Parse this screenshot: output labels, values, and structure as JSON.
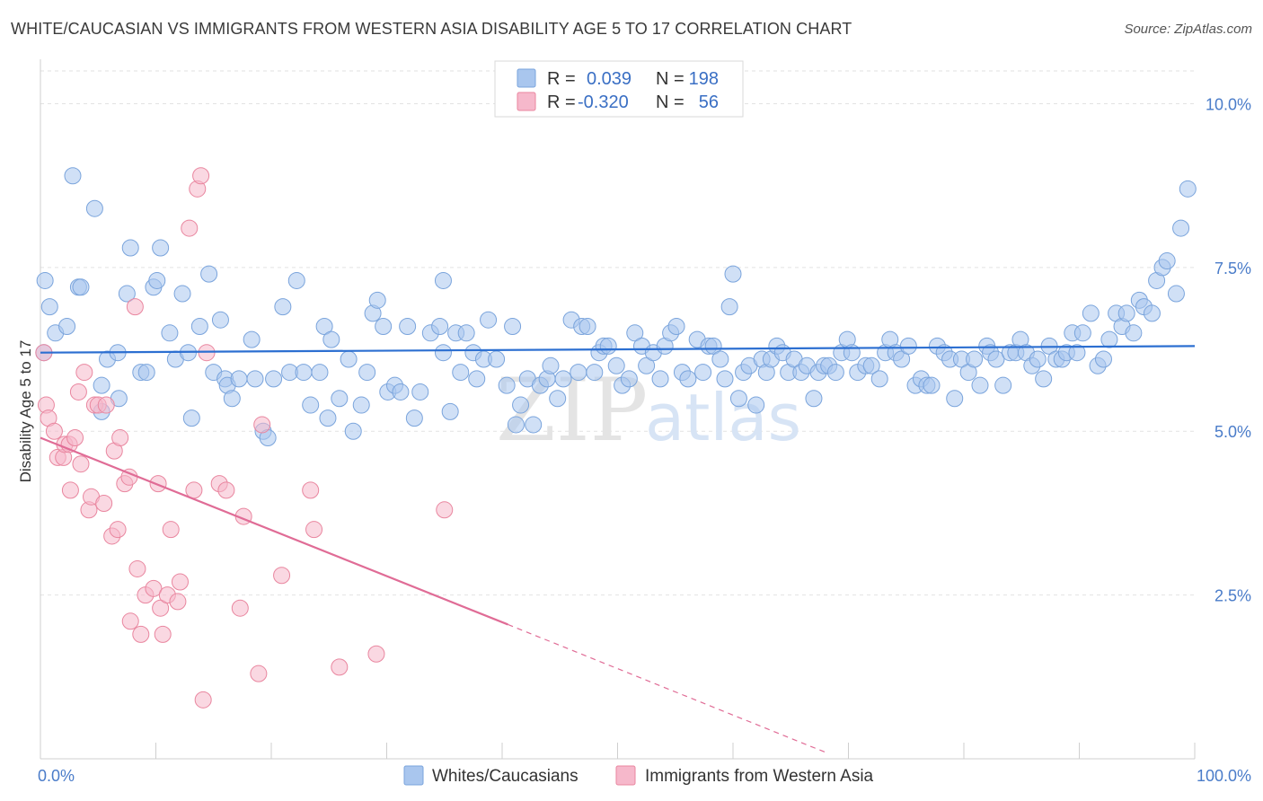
{
  "header": {
    "title": "WHITE/CAUCASIAN VS IMMIGRANTS FROM WESTERN ASIA DISABILITY AGE 5 TO 17 CORRELATION CHART",
    "source": "Source: ZipAtlas.com"
  },
  "watermark": {
    "zip": "ZIP",
    "atlas": "atlas"
  },
  "legend": {
    "r_label": "R =",
    "n_label": "N =",
    "rows": [
      {
        "r": "0.039",
        "n": "198",
        "color": "#a9c6ee"
      },
      {
        "r": "-0.320",
        "n": "56",
        "color": "#f6b8cb"
      }
    ]
  },
  "bottom_legend": [
    {
      "label": "Whites/Caucasians",
      "color": "#a9c6ee"
    },
    {
      "label": "Immigrants from Western Asia",
      "color": "#f6b8cb"
    }
  ],
  "chart_data": {
    "type": "scatter",
    "title": "WHITE/CAUCASIAN VS IMMIGRANTS FROM WESTERN ASIA DISABILITY AGE 5 TO 17 CORRELATION CHART",
    "xlabel": "",
    "ylabel": "Disability Age 5 to 17",
    "xlim": [
      0,
      100
    ],
    "ylim": [
      0,
      10.5
    ],
    "x_tick_labels": [
      "0.0%",
      "100.0%"
    ],
    "y_ticks": [
      {
        "value": 2.5,
        "label": "2.5%"
      },
      {
        "value": 5.0,
        "label": "5.0%"
      },
      {
        "value": 7.5,
        "label": "7.5%"
      },
      {
        "value": 10.0,
        "label": "10.0%"
      }
    ],
    "grid": true,
    "series": [
      {
        "name": "Whites/Caucasians",
        "color": "#a9c6ee",
        "stroke": "#7aa4dc",
        "trend": {
          "x": [
            0,
            100
          ],
          "y": [
            6.2,
            6.3
          ],
          "color": "#2c6fd1"
        },
        "points": [
          [
            0.3,
            6.2
          ],
          [
            0.4,
            7.3
          ],
          [
            0.8,
            6.9
          ],
          [
            1.3,
            6.5
          ],
          [
            2.3,
            6.6
          ],
          [
            2.8,
            8.9
          ],
          [
            3.3,
            7.2
          ],
          [
            3.5,
            7.2
          ],
          [
            4.7,
            8.4
          ],
          [
            5.3,
            5.7
          ],
          [
            5.3,
            5.3
          ],
          [
            5.8,
            6.1
          ],
          [
            6.7,
            6.2
          ],
          [
            6.8,
            5.5
          ],
          [
            7.5,
            7.1
          ],
          [
            7.8,
            7.8
          ],
          [
            8.7,
            5.9
          ],
          [
            9.2,
            5.9
          ],
          [
            9.8,
            7.2
          ],
          [
            10.1,
            7.3
          ],
          [
            10.4,
            7.8
          ],
          [
            11.2,
            6.5
          ],
          [
            11.7,
            6.1
          ],
          [
            12.3,
            7.1
          ],
          [
            12.8,
            6.2
          ],
          [
            13.1,
            5.2
          ],
          [
            13.8,
            6.6
          ],
          [
            14.6,
            7.4
          ],
          [
            15.0,
            5.9
          ],
          [
            15.6,
            6.7
          ],
          [
            16.0,
            5.8
          ],
          [
            16.2,
            5.7
          ],
          [
            16.6,
            5.5
          ],
          [
            17.2,
            5.8
          ],
          [
            18.3,
            6.4
          ],
          [
            18.6,
            5.8
          ],
          [
            19.3,
            5.0
          ],
          [
            19.7,
            4.9
          ],
          [
            20.2,
            5.8
          ],
          [
            21.0,
            6.9
          ],
          [
            21.6,
            5.9
          ],
          [
            22.2,
            7.3
          ],
          [
            22.8,
            5.9
          ],
          [
            23.4,
            5.4
          ],
          [
            24.2,
            5.9
          ],
          [
            24.6,
            6.6
          ],
          [
            24.9,
            5.2
          ],
          [
            25.2,
            6.4
          ],
          [
            25.9,
            5.5
          ],
          [
            26.7,
            6.1
          ],
          [
            27.1,
            5.0
          ],
          [
            27.8,
            5.4
          ],
          [
            28.3,
            5.9
          ],
          [
            28.8,
            6.8
          ],
          [
            29.2,
            7.0
          ],
          [
            29.7,
            6.6
          ],
          [
            30.1,
            5.6
          ],
          [
            30.7,
            5.7
          ],
          [
            31.2,
            5.6
          ],
          [
            31.8,
            6.6
          ],
          [
            32.4,
            5.2
          ],
          [
            32.9,
            5.6
          ],
          [
            33.8,
            6.5
          ],
          [
            34.6,
            6.6
          ],
          [
            34.9,
            6.2
          ],
          [
            34.9,
            7.3
          ],
          [
            35.5,
            5.3
          ],
          [
            36.0,
            6.5
          ],
          [
            36.4,
            5.9
          ],
          [
            36.9,
            6.5
          ],
          [
            37.5,
            6.2
          ],
          [
            37.8,
            5.8
          ],
          [
            38.4,
            6.1
          ],
          [
            38.8,
            6.7
          ],
          [
            39.5,
            6.1
          ],
          [
            40.4,
            5.7
          ],
          [
            40.9,
            6.6
          ],
          [
            41.2,
            5.1
          ],
          [
            41.6,
            5.4
          ],
          [
            42.2,
            5.8
          ],
          [
            42.7,
            5.1
          ],
          [
            43.3,
            5.7
          ],
          [
            43.9,
            5.8
          ],
          [
            44.2,
            6.0
          ],
          [
            44.8,
            5.5
          ],
          [
            45.3,
            5.8
          ],
          [
            46.0,
            6.7
          ],
          [
            46.6,
            5.9
          ],
          [
            46.9,
            6.6
          ],
          [
            47.4,
            6.6
          ],
          [
            48.0,
            5.9
          ],
          [
            48.4,
            6.2
          ],
          [
            48.8,
            6.3
          ],
          [
            49.2,
            6.3
          ],
          [
            49.9,
            6.0
          ],
          [
            50.4,
            5.7
          ],
          [
            51.0,
            5.8
          ],
          [
            51.5,
            6.5
          ],
          [
            52.1,
            6.3
          ],
          [
            52.5,
            6.0
          ],
          [
            53.1,
            6.2
          ],
          [
            53.7,
            5.8
          ],
          [
            54.1,
            6.3
          ],
          [
            54.6,
            6.5
          ],
          [
            55.1,
            6.6
          ],
          [
            55.6,
            5.9
          ],
          [
            56.1,
            5.8
          ],
          [
            56.9,
            6.4
          ],
          [
            57.4,
            5.9
          ],
          [
            57.9,
            6.3
          ],
          [
            58.3,
            6.3
          ],
          [
            58.9,
            6.1
          ],
          [
            59.3,
            5.8
          ],
          [
            59.7,
            6.9
          ],
          [
            60.0,
            7.4
          ],
          [
            60.5,
            5.5
          ],
          [
            60.9,
            5.9
          ],
          [
            61.4,
            6.0
          ],
          [
            62.0,
            5.4
          ],
          [
            62.5,
            6.1
          ],
          [
            62.9,
            5.9
          ],
          [
            63.3,
            6.1
          ],
          [
            63.8,
            6.3
          ],
          [
            64.3,
            6.2
          ],
          [
            64.8,
            5.9
          ],
          [
            65.3,
            6.1
          ],
          [
            65.9,
            5.9
          ],
          [
            66.4,
            6.0
          ],
          [
            67.0,
            5.5
          ],
          [
            67.4,
            5.9
          ],
          [
            67.9,
            6.0
          ],
          [
            68.3,
            6.0
          ],
          [
            68.9,
            5.9
          ],
          [
            69.4,
            6.2
          ],
          [
            69.9,
            6.4
          ],
          [
            70.3,
            6.2
          ],
          [
            70.8,
            5.9
          ],
          [
            71.5,
            6.0
          ],
          [
            72.0,
            6.0
          ],
          [
            72.7,
            5.8
          ],
          [
            73.2,
            6.2
          ],
          [
            73.6,
            6.4
          ],
          [
            74.1,
            6.2
          ],
          [
            74.6,
            6.1
          ],
          [
            75.2,
            6.3
          ],
          [
            75.8,
            5.7
          ],
          [
            76.3,
            5.8
          ],
          [
            76.8,
            5.7
          ],
          [
            77.2,
            5.7
          ],
          [
            77.7,
            6.3
          ],
          [
            78.3,
            6.2
          ],
          [
            78.8,
            6.1
          ],
          [
            79.2,
            5.5
          ],
          [
            79.8,
            6.1
          ],
          [
            80.4,
            5.9
          ],
          [
            80.9,
            6.1
          ],
          [
            81.4,
            5.7
          ],
          [
            82.0,
            6.3
          ],
          [
            82.3,
            6.2
          ],
          [
            82.8,
            6.1
          ],
          [
            83.4,
            5.7
          ],
          [
            84.0,
            6.2
          ],
          [
            84.5,
            6.2
          ],
          [
            84.9,
            6.4
          ],
          [
            85.4,
            6.2
          ],
          [
            85.9,
            6.0
          ],
          [
            86.4,
            6.1
          ],
          [
            86.9,
            5.8
          ],
          [
            87.4,
            6.3
          ],
          [
            88.0,
            6.1
          ],
          [
            88.5,
            6.1
          ],
          [
            88.9,
            6.2
          ],
          [
            89.4,
            6.5
          ],
          [
            89.8,
            6.2
          ],
          [
            90.3,
            6.5
          ],
          [
            91.0,
            6.8
          ],
          [
            91.6,
            6.0
          ],
          [
            92.1,
            6.1
          ],
          [
            92.6,
            6.4
          ],
          [
            93.2,
            6.8
          ],
          [
            93.7,
            6.6
          ],
          [
            94.1,
            6.8
          ],
          [
            94.7,
            6.5
          ],
          [
            95.2,
            7.0
          ],
          [
            95.6,
            6.9
          ],
          [
            96.3,
            6.8
          ],
          [
            96.7,
            7.3
          ],
          [
            97.2,
            7.5
          ],
          [
            97.6,
            7.6
          ],
          [
            98.4,
            7.1
          ],
          [
            98.8,
            8.1
          ],
          [
            99.4,
            8.7
          ]
        ]
      },
      {
        "name": "Immigrants from Western Asia",
        "color": "#f6b8cb",
        "stroke": "#e9869f",
        "trend": {
          "x": [
            0,
            40.5
          ],
          "y": [
            4.9,
            2.05
          ],
          "color": "#e06c96"
        },
        "trend_extension": {
          "x": [
            40.5,
            68
          ],
          "y": [
            2.05,
            0.1
          ]
        },
        "points": [
          [
            0.3,
            6.2
          ],
          [
            0.5,
            5.4
          ],
          [
            0.7,
            5.2
          ],
          [
            1.2,
            5.0
          ],
          [
            1.5,
            4.6
          ],
          [
            2.0,
            4.6
          ],
          [
            2.1,
            4.8
          ],
          [
            2.5,
            4.8
          ],
          [
            2.6,
            4.1
          ],
          [
            3.0,
            4.9
          ],
          [
            3.3,
            5.6
          ],
          [
            3.5,
            4.5
          ],
          [
            3.8,
            5.9
          ],
          [
            4.2,
            3.8
          ],
          [
            4.4,
            4.0
          ],
          [
            4.7,
            5.4
          ],
          [
            5.0,
            5.4
          ],
          [
            5.5,
            3.9
          ],
          [
            5.7,
            5.4
          ],
          [
            6.2,
            3.4
          ],
          [
            6.4,
            4.7
          ],
          [
            6.7,
            3.5
          ],
          [
            6.9,
            4.9
          ],
          [
            7.3,
            4.2
          ],
          [
            7.7,
            4.3
          ],
          [
            7.8,
            2.1
          ],
          [
            8.2,
            6.9
          ],
          [
            8.4,
            2.9
          ],
          [
            8.7,
            1.9
          ],
          [
            9.1,
            2.5
          ],
          [
            9.8,
            2.6
          ],
          [
            10.2,
            4.2
          ],
          [
            10.4,
            2.3
          ],
          [
            10.6,
            1.9
          ],
          [
            11.0,
            2.5
          ],
          [
            11.3,
            3.5
          ],
          [
            11.9,
            2.4
          ],
          [
            12.1,
            2.7
          ],
          [
            12.9,
            8.1
          ],
          [
            13.3,
            4.1
          ],
          [
            13.6,
            8.7
          ],
          [
            13.9,
            8.9
          ],
          [
            14.1,
            0.9
          ],
          [
            14.4,
            6.2
          ],
          [
            15.5,
            4.2
          ],
          [
            16.1,
            4.1
          ],
          [
            17.3,
            2.3
          ],
          [
            17.6,
            3.7
          ],
          [
            18.9,
            1.3
          ],
          [
            19.2,
            5.1
          ],
          [
            20.9,
            2.8
          ],
          [
            23.4,
            4.1
          ],
          [
            23.7,
            3.5
          ],
          [
            25.9,
            1.4
          ],
          [
            29.1,
            1.6
          ],
          [
            35.0,
            3.8
          ]
        ]
      }
    ]
  }
}
